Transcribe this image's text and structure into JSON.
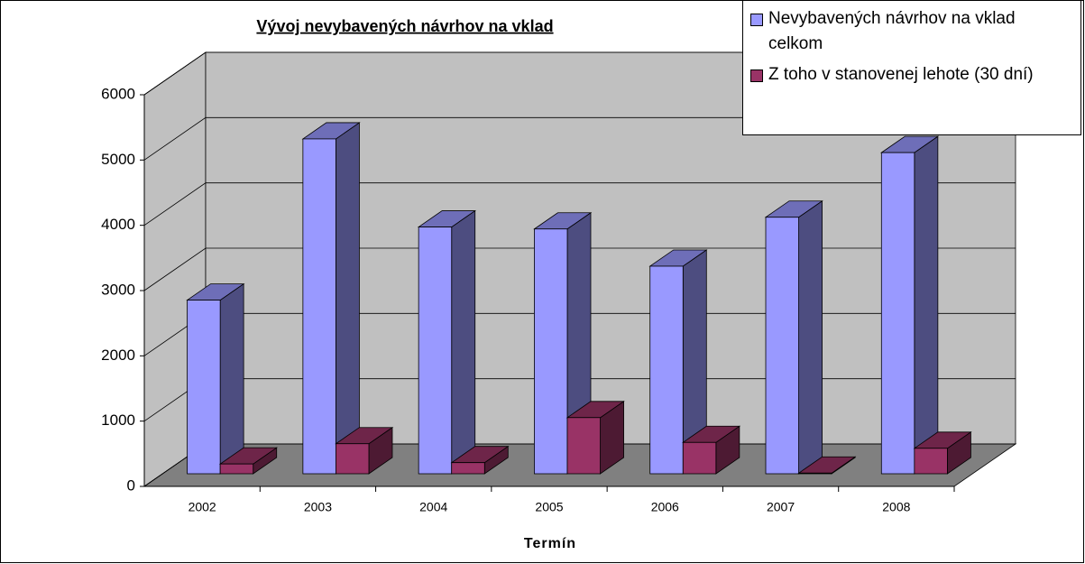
{
  "chart_data": {
    "type": "bar3d",
    "title": "Vývoj nevybavených návrhov na vklad",
    "x_label": "Termín",
    "categories": [
      "2002",
      "2003",
      "2004",
      "2005",
      "2006",
      "2007",
      "2008"
    ],
    "series": [
      {
        "name": "Nevybavených návrhov na vklad celkom",
        "color": "#9999ff",
        "values": [
          2660,
          5130,
          3780,
          3750,
          3180,
          3930,
          4920
        ]
      },
      {
        "name": "Z toho v stanovenej lehote (30 dní)",
        "color": "#993366",
        "values": [
          150,
          460,
          170,
          860,
          480,
          10,
          390
        ]
      }
    ],
    "ylim": [
      0,
      6000
    ],
    "yticks": [
      0,
      1000,
      2000,
      3000,
      4000,
      5000,
      6000
    ],
    "grid": true,
    "legend": "top-right"
  }
}
